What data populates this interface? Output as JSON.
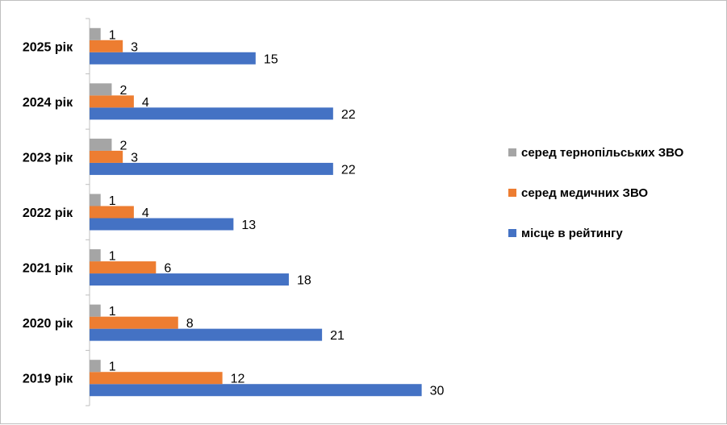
{
  "chart_data": {
    "type": "bar",
    "orientation": "horizontal",
    "categories": [
      "2019 рік",
      "2020 рік",
      "2021 рік",
      "2022 рік",
      "2023 рік",
      "2024 рік",
      "2025 рік"
    ],
    "series": [
      {
        "name": "місце в рейтингу",
        "values": [
          30,
          21,
          18,
          13,
          22,
          22,
          15
        ],
        "color": "#4472C4"
      },
      {
        "name": "серед медичних ЗВО",
        "values": [
          12,
          8,
          6,
          4,
          3,
          4,
          3
        ],
        "color": "#ED7D31"
      },
      {
        "name": "серед тернопільських ЗВО",
        "values": [
          1,
          1,
          1,
          1,
          2,
          2,
          1
        ],
        "color": "#A5A5A5"
      }
    ],
    "legend_order": [
      "серед тернопільських ЗВО",
      "серед медичних ЗВО",
      "місце в рейтингу"
    ],
    "legend_position": "right",
    "xlim": [
      0,
      30
    ],
    "grid": false,
    "data_labels": true
  }
}
